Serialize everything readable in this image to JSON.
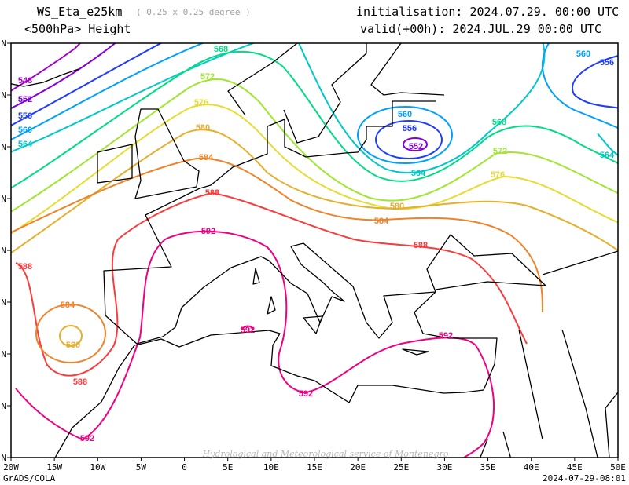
{
  "header": {
    "model": "WS_Eta_e25km",
    "resolution": "( 0.25 x 0.25 degree )",
    "field": "<500hPa> Height",
    "initialisation": "initialisation: 2024.07.29.  00:00 UTC",
    "valid": "valid(+00h): 2024.JUL.29 00:00 UTC"
  },
  "axes": {
    "lon_ticks": [
      "20W",
      "15W",
      "10W",
      "5W",
      "0",
      "5E",
      "10E",
      "15E",
      "20E",
      "25E",
      "30E",
      "35E",
      "40E",
      "45E",
      "50E"
    ],
    "lat_ticks": [
      "N",
      "N",
      "N",
      "N",
      "N",
      "N",
      "N",
      "N",
      "N"
    ]
  },
  "contours": {
    "levels": [
      548,
      552,
      556,
      560,
      564,
      568,
      572,
      576,
      580,
      584,
      588,
      592
    ],
    "colors": {
      "548": "#a000c8",
      "552": "#8200dc",
      "556": "#1e3cff",
      "560": "#00a0ff",
      "564": "#00c8c8",
      "568": "#00dc82",
      "572": "#a0e632",
      "576": "#e6dc32",
      "580": "#e6af2d",
      "584": "#f08228",
      "588": "#fa3c3c",
      "592": "#f00082"
    },
    "labels": [
      "548",
      "552",
      "556",
      "560",
      "564",
      "568",
      "572",
      "576",
      "580",
      "584",
      "588",
      "592"
    ]
  },
  "watermark": "Hydrological and Meteorological service of Montenegro",
  "footer": {
    "software": "GrADS/COLA",
    "timestamp": "2024-07-29-08:01"
  }
}
